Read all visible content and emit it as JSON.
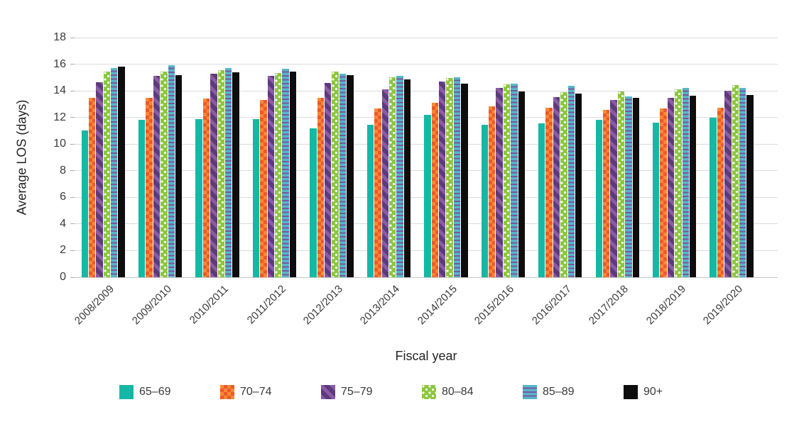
{
  "chart_data": {
    "type": "bar",
    "title": "",
    "xlabel": "Fiscal year",
    "ylabel": "Average LOS (days)",
    "ylim": [
      0,
      18
    ],
    "yticks": [
      0,
      2,
      4,
      6,
      8,
      10,
      12,
      14,
      16,
      18
    ],
    "grid": true,
    "legend_position": "bottom",
    "categories": [
      "2008/2009",
      "2009/2010",
      "2010/2011",
      "2011/2012",
      "2012/2013",
      "2013/2014",
      "2014/2015",
      "2015/2016",
      "2016/2017",
      "2017/2018",
      "2018/2019",
      "2019/2020"
    ],
    "series": [
      {
        "name": "65–69",
        "pattern": "pat-teal",
        "color": "#14b8a5",
        "values": [
          11.0,
          11.8,
          11.9,
          11.9,
          11.2,
          11.45,
          12.2,
          11.45,
          11.55,
          11.8,
          11.6,
          12.0
        ]
      },
      {
        "name": "70–74",
        "pattern": "pat-orange",
        "color": "#f0572b",
        "values": [
          13.5,
          13.5,
          13.4,
          13.3,
          13.45,
          12.7,
          13.1,
          12.85,
          12.75,
          12.55,
          12.7,
          12.75
        ]
      },
      {
        "name": "75–79",
        "pattern": "pat-purple",
        "color": "#5c3a7c",
        "values": [
          14.65,
          15.1,
          15.3,
          15.1,
          14.6,
          14.1,
          14.7,
          14.2,
          13.55,
          13.3,
          13.45,
          14.0
        ]
      },
      {
        "name": "80–84",
        "pattern": "pat-green",
        "color": "#8cc63f",
        "values": [
          15.45,
          15.45,
          15.55,
          15.35,
          15.45,
          15.0,
          14.95,
          14.5,
          13.9,
          13.95,
          14.1,
          14.45
        ]
      },
      {
        "name": "85–89",
        "pattern": "pat-bluestripe",
        "color": "#54b7c6",
        "values": [
          15.7,
          15.95,
          15.7,
          15.65,
          15.3,
          15.1,
          15.0,
          14.55,
          14.4,
          13.6,
          14.2,
          14.2
        ]
      },
      {
        "name": "90+",
        "pattern": "pat-black",
        "color": "#0d0d0d",
        "values": [
          15.8,
          15.2,
          15.4,
          15.45,
          15.2,
          14.85,
          14.55,
          13.95,
          13.8,
          13.5,
          13.65,
          13.7
        ]
      }
    ]
  }
}
